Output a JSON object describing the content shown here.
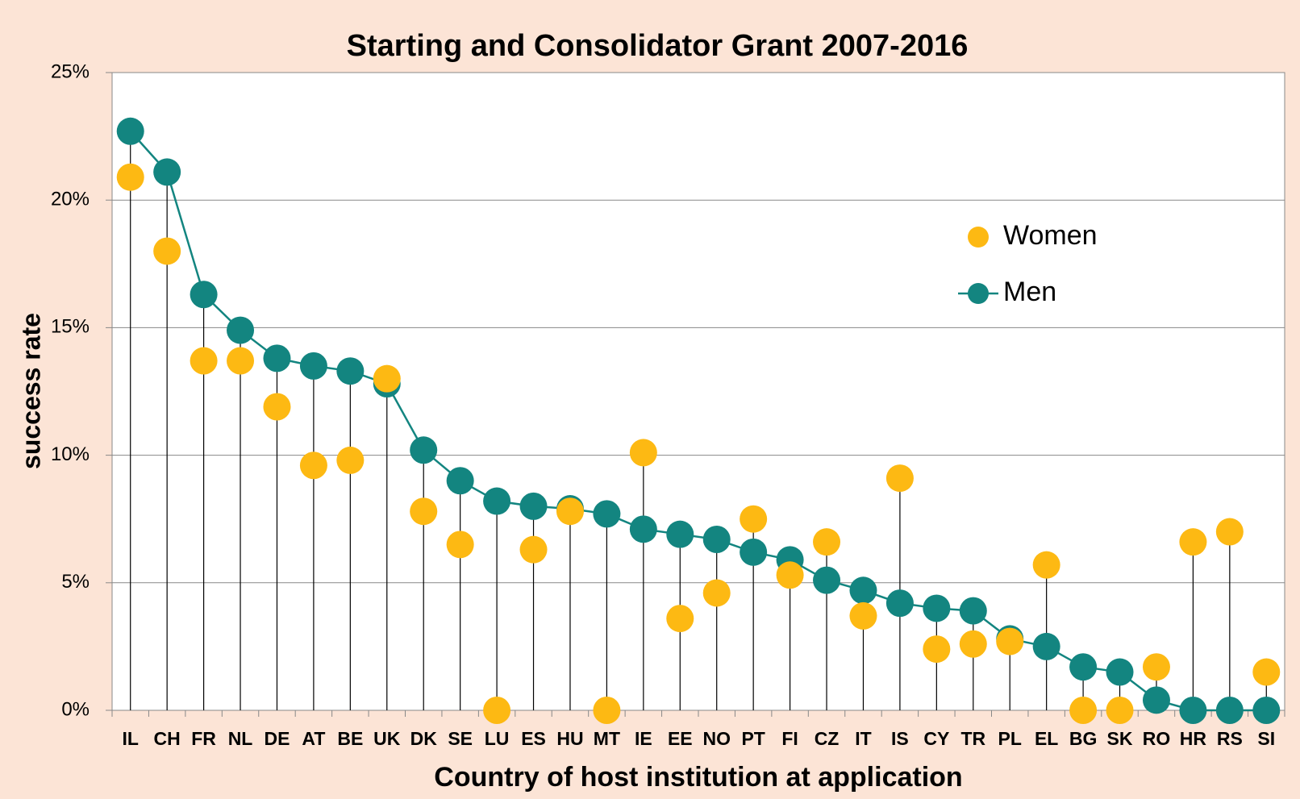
{
  "chart_data": {
    "type": "line",
    "title": "Starting and Consolidator Grant 2007-2016",
    "x_label": "Country of host institution at application",
    "y_label": "success rate",
    "categories": [
      "IL",
      "CH",
      "FR",
      "NL",
      "DE",
      "AT",
      "BE",
      "UK",
      "DK",
      "SE",
      "LU",
      "ES",
      "HU",
      "MT",
      "IE",
      "EE",
      "NO",
      "PT",
      "FI",
      "CZ",
      "IT",
      "IS",
      "CY",
      "TR",
      "PL",
      "EL",
      "BG",
      "SK",
      "RO",
      "HR",
      "RS",
      "SI"
    ],
    "series": [
      {
        "name": "Women",
        "color": "#fdb913",
        "line": false,
        "values": [
          20.9,
          18.0,
          13.7,
          13.7,
          11.9,
          9.6,
          9.8,
          13.0,
          7.8,
          6.5,
          0,
          6.3,
          7.8,
          0,
          10.1,
          3.6,
          4.6,
          7.5,
          5.3,
          6.6,
          3.7,
          9.1,
          2.4,
          2.6,
          2.7,
          5.7,
          0,
          0,
          1.7,
          6.6,
          7.0,
          1.5
        ]
      },
      {
        "name": "Men",
        "color": "#138580",
        "line": true,
        "values": [
          22.7,
          21.1,
          16.3,
          14.9,
          13.8,
          13.5,
          13.3,
          12.8,
          10.2,
          9.0,
          8.2,
          8.0,
          7.9,
          7.7,
          7.1,
          6.9,
          6.7,
          6.2,
          5.9,
          5.1,
          4.7,
          4.2,
          4.0,
          3.9,
          2.8,
          2.5,
          1.7,
          1.5,
          0.4,
          0,
          0,
          0
        ]
      }
    ],
    "ylim": [
      0,
      25
    ],
    "yticks": [
      {
        "value": 0,
        "label": "0%"
      },
      {
        "value": 5,
        "label": "5%"
      },
      {
        "value": 10,
        "label": "10%"
      },
      {
        "value": 15,
        "label": "15%"
      },
      {
        "value": 20,
        "label": "20%"
      },
      {
        "value": 25,
        "label": "25%"
      }
    ],
    "grid": true,
    "drop_lines": true,
    "legend": "upper right"
  }
}
